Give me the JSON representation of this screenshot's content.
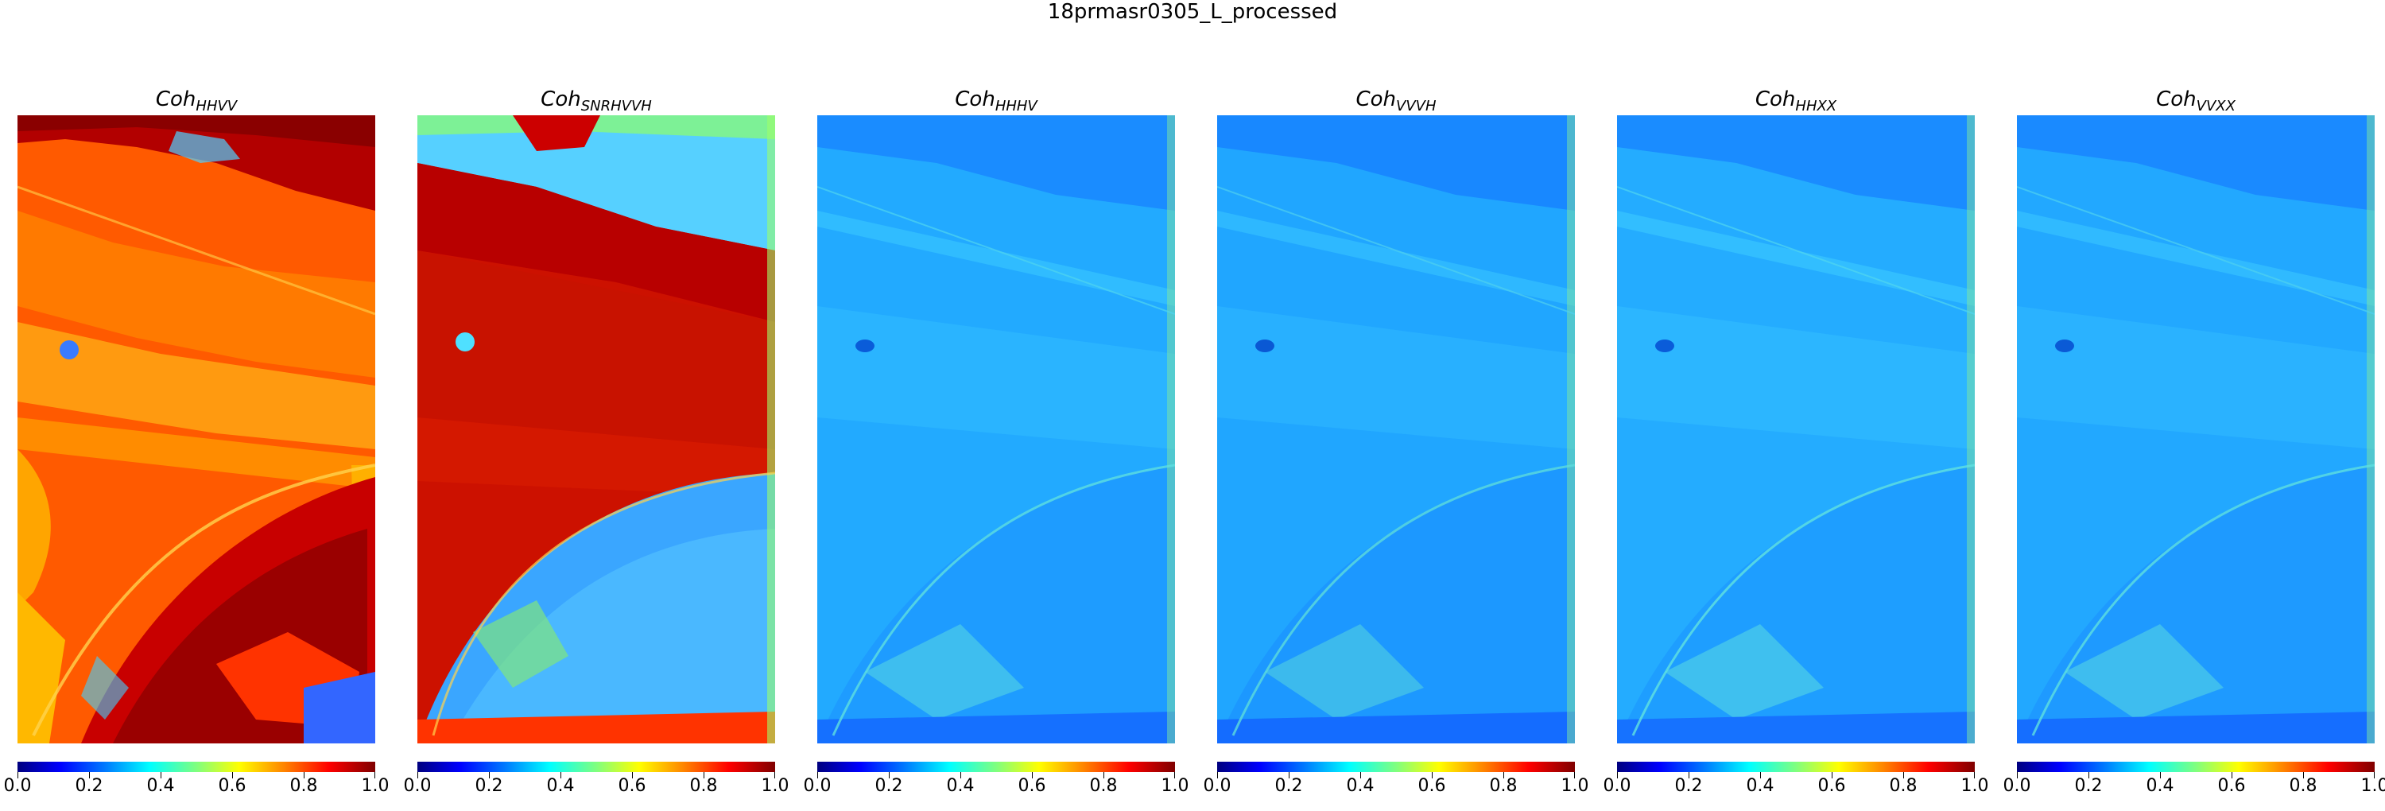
{
  "figure": {
    "title": "18prmasr0305_L_processed"
  },
  "colorbar": {
    "colormap": "jet",
    "range": [
      0.0,
      1.0
    ],
    "ticks": [
      "0.0",
      "0.2",
      "0.4",
      "0.6",
      "0.8",
      "1.0"
    ]
  },
  "panels": [
    {
      "base": "Coh",
      "sub": "HHVV",
      "mean_coherence": 0.82,
      "scene": "high-coherence-red"
    },
    {
      "base": "Coh",
      "sub": "SNRHVVH",
      "mean_coherence": 0.85,
      "scene": "high-coherence-red-with-blue-lower-arc"
    },
    {
      "base": "Coh",
      "sub": "HHHV",
      "mean_coherence": 0.3,
      "scene": "low-coherence-blue"
    },
    {
      "base": "Coh",
      "sub": "VVVH",
      "mean_coherence": 0.3,
      "scene": "low-coherence-blue"
    },
    {
      "base": "Coh",
      "sub": "HHXX",
      "mean_coherence": 0.3,
      "scene": "low-coherence-blue"
    },
    {
      "base": "Coh",
      "sub": "VVXX",
      "mean_coherence": 0.3,
      "scene": "low-coherence-blue"
    }
  ]
}
